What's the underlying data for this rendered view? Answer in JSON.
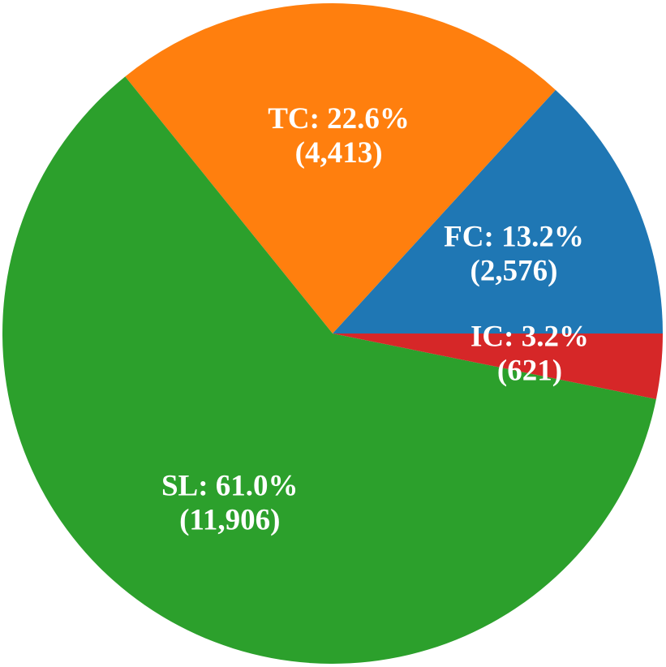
{
  "chart_data": {
    "type": "pie",
    "title": "",
    "start_angle_deg": 0,
    "direction": "counterclockwise",
    "slices": [
      {
        "name": "FC",
        "percent_label": "FC: 13.2%",
        "count_label": "(2,576)",
        "value": 2576,
        "color": "#1f77b4"
      },
      {
        "name": "TC",
        "percent_label": "TC: 22.6%",
        "count_label": "(4,413)",
        "value": 4413,
        "color": "#ff7f0e"
      },
      {
        "name": "SL",
        "percent_label": "SL: 61.0%",
        "count_label": "(11,906)",
        "value": 11906,
        "color": "#2ca02c"
      },
      {
        "name": "IC",
        "percent_label": "IC: 3.2%",
        "count_label": "(621)",
        "value": 621,
        "color": "#d62728"
      }
    ]
  }
}
